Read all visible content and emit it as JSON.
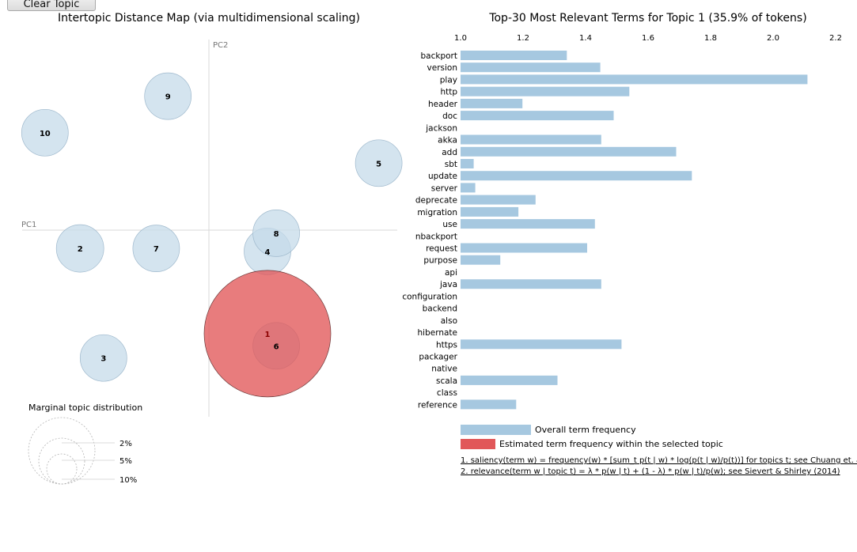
{
  "controls": {
    "clear_topic_label": "Clear Topic"
  },
  "chart_data": [
    {
      "type": "scatter",
      "title": "Intertopic Distance Map (via multidimensional scaling)",
      "axes": {
        "x_label": "PC1",
        "y_label": "PC2"
      },
      "selected_topic": "1",
      "colors": {
        "topic": "#c6dbea",
        "topic_stroke": "#9fb9cd",
        "selected": "#e15759",
        "selected_stroke": "#6b3a3a",
        "axis_line": "#d9d9d9"
      },
      "topics": [
        {
          "label": "1",
          "x": 1.0,
          "y": -1.7,
          "share": 35.9
        },
        {
          "label": "2",
          "x": -2.2,
          "y": -0.3,
          "share": 13.0
        },
        {
          "label": "3",
          "x": -1.8,
          "y": -2.1,
          "share": 10.0
        },
        {
          "label": "4",
          "x": 1.0,
          "y": -0.35,
          "share": 8.0
        },
        {
          "label": "5",
          "x": 2.9,
          "y": 1.1,
          "share": 4.0
        },
        {
          "label": "6",
          "x": 1.15,
          "y": -1.9,
          "share": 4.0
        },
        {
          "label": "7",
          "x": -0.9,
          "y": -0.3,
          "share": 4.0
        },
        {
          "label": "8",
          "x": 1.15,
          "y": -0.05,
          "share": 4.0
        },
        {
          "label": "9",
          "x": -0.7,
          "y": 2.2,
          "share": 4.0
        },
        {
          "label": "10",
          "x": -2.8,
          "y": 1.6,
          "share": 4.0
        }
      ],
      "legend": {
        "title": "Marginal topic distribution",
        "sizes": [
          {
            "label": "2%",
            "value": 2
          },
          {
            "label": "5%",
            "value": 5
          },
          {
            "label": "10%",
            "value": 10
          }
        ]
      }
    },
    {
      "type": "bar",
      "orientation": "horizontal",
      "title": "Top-30 Most Relevant Terms for Topic 1 (35.9% of tokens)",
      "x_ticks": [
        "1.0",
        "1.2",
        "1.4",
        "1.6",
        "1.8",
        "2.0",
        "2.2"
      ],
      "xlim": [
        1.0,
        2.2
      ],
      "colors": {
        "overall": "#a6c8e0",
        "estimated": "#e15759"
      },
      "terms": [
        {
          "term": "backport",
          "value": 1.34
        },
        {
          "term": "version",
          "value": 1.447
        },
        {
          "term": "play",
          "value": 2.11
        },
        {
          "term": "http",
          "value": 1.54
        },
        {
          "term": "header",
          "value": 1.198
        },
        {
          "term": "doc",
          "value": 1.49
        },
        {
          "term": "jackson",
          "value": 1.0
        },
        {
          "term": "akka",
          "value": 1.45
        },
        {
          "term": "add",
          "value": 1.69
        },
        {
          "term": "sbt",
          "value": 1.042
        },
        {
          "term": "update",
          "value": 1.74
        },
        {
          "term": "server",
          "value": 1.047
        },
        {
          "term": "deprecate",
          "value": 1.24
        },
        {
          "term": "migration",
          "value": 1.185
        },
        {
          "term": "use",
          "value": 1.43
        },
        {
          "term": "nbackport",
          "value": 1.0
        },
        {
          "term": "request",
          "value": 1.405
        },
        {
          "term": "purpose",
          "value": 1.127
        },
        {
          "term": "api",
          "value": 1.0
        },
        {
          "term": "java",
          "value": 1.45
        },
        {
          "term": "configuration",
          "value": 1.0
        },
        {
          "term": "backend",
          "value": 1.0
        },
        {
          "term": "also",
          "value": 1.0
        },
        {
          "term": "hibernate",
          "value": 1.0
        },
        {
          "term": "https",
          "value": 1.515
        },
        {
          "term": "packager",
          "value": 1.0
        },
        {
          "term": "native",
          "value": 1.0
        },
        {
          "term": "scala",
          "value": 1.31
        },
        {
          "term": "class",
          "value": 1.0
        },
        {
          "term": "reference",
          "value": 1.178
        }
      ],
      "legend": [
        {
          "label": "Overall term frequency",
          "color": "#a6c8e0"
        },
        {
          "label": "Estimated term frequency within the selected topic",
          "color": "#e15759"
        }
      ]
    }
  ],
  "footnotes": [
    "1. saliency(term w) = frequency(w) * [sum_t p(t | w) * log(p(t | w)/p(t))] for topics t; see Chuang et. al (2012)",
    "2. relevance(term w | topic t) = λ * p(w | t) + (1 - λ) * p(w | t)/p(w); see Sievert & Shirley (2014)"
  ]
}
